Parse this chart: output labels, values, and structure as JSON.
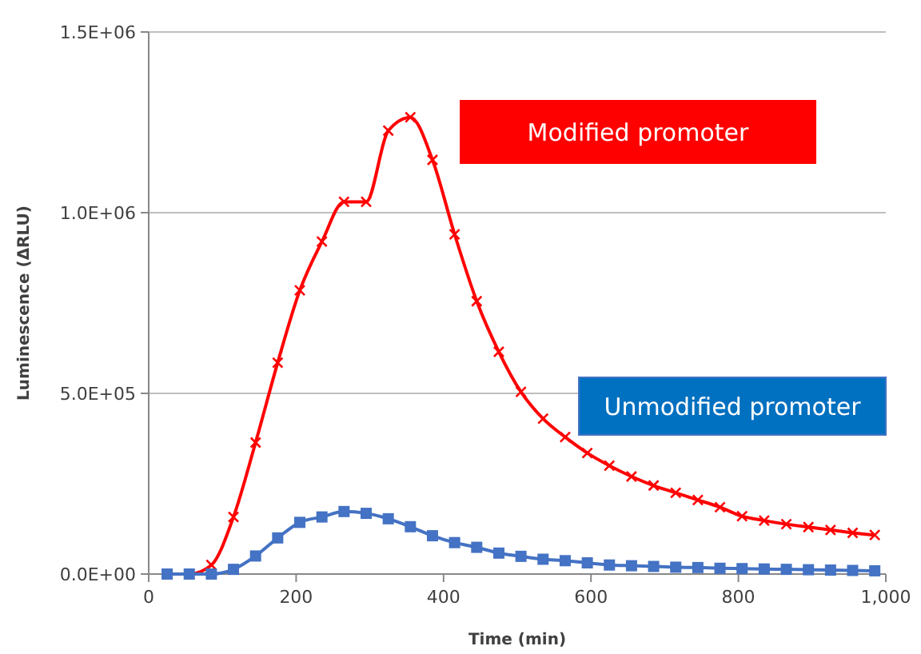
{
  "chart_data": {
    "type": "line",
    "xlabel": "Time (min)",
    "ylabel": "Luminescence (ΔRLU)",
    "x": [
      25,
      55,
      85,
      115,
      145,
      175,
      205,
      235,
      265,
      295,
      325,
      355,
      385,
      415,
      445,
      475,
      505,
      535,
      565,
      595,
      625,
      655,
      685,
      715,
      745,
      775,
      805,
      835,
      865,
      895,
      925,
      955,
      985
    ],
    "xlim": [
      0,
      1000
    ],
    "xticks": [
      0,
      200,
      400,
      600,
      800,
      {
        "value": 1000,
        "label": "1,000"
      }
    ],
    "ylim": [
      0,
      1500000
    ],
    "yticks": [
      {
        "value": 0,
        "label": "0.0E+00"
      },
      {
        "value": 500000,
        "label": "5.0E+05"
      },
      {
        "value": 1000000,
        "label": "1.0E+06"
      },
      {
        "value": 1500000,
        "label": "1.5E+06"
      }
    ],
    "grid": "y",
    "legend": "right",
    "line_style": "solid",
    "series": [
      {
        "name": "Modified promoter",
        "color": "#ff0000",
        "marker": "cross",
        "values": [
          0,
          0,
          25000,
          158000,
          364000,
          585000,
          785000,
          920000,
          1030000,
          1030000,
          1227000,
          1264000,
          1146000,
          940000,
          755000,
          615000,
          504000,
          430000,
          379000,
          335000,
          300000,
          270000,
          245000,
          225000,
          205000,
          185000,
          160000,
          148000,
          138000,
          130000,
          122000,
          114000,
          108000
        ]
      },
      {
        "name": "Unmodified promoter",
        "color": "#4472c4",
        "marker": "square",
        "values": [
          0,
          0,
          0,
          13000,
          50000,
          100000,
          143000,
          158000,
          173000,
          168000,
          153000,
          131000,
          106000,
          87000,
          74000,
          58000,
          49000,
          41000,
          37000,
          31000,
          25000,
          23000,
          21000,
          19000,
          18000,
          16000,
          15000,
          14000,
          13000,
          12000,
          11000,
          10000,
          9000
        ]
      }
    ]
  }
}
